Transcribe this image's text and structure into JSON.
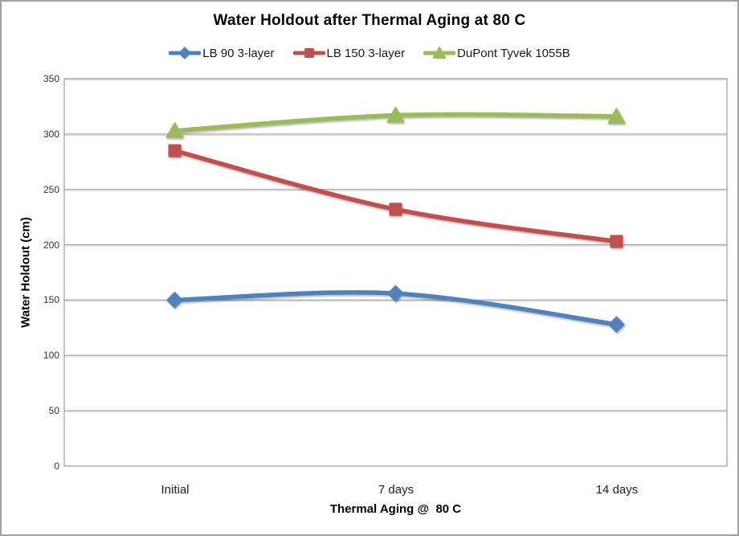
{
  "window": {
    "background": "#FFFFFF",
    "border_color": "#A2A2A2"
  },
  "chart_data": {
    "type": "line",
    "title": "Water Holdout after Thermal Aging at 80 C",
    "xlabel": "Thermal Aging @  80 C",
    "ylabel": "Water Holdout (cm)",
    "categories": [
      "Initial",
      "7 days",
      "14 days"
    ],
    "yticks": [
      350,
      300,
      250,
      200,
      150,
      100,
      50,
      0
    ],
    "ylim": [
      0,
      350
    ],
    "ytick_step": 50,
    "grid": "horizontal",
    "gridline_color": "#A6A6A6",
    "legend_position": "top",
    "smoothed_lines": true,
    "series": [
      {
        "name": "LB 90 3-layer",
        "color": "#4F81BD",
        "marker": "diamond",
        "values": [
          150,
          156,
          128
        ]
      },
      {
        "name": "LB 150 3-layer",
        "color": "#C0504D",
        "marker": "square",
        "values": [
          285,
          232,
          203
        ]
      },
      {
        "name": "DuPont Tyvek 1055B",
        "color": "#9BBB59",
        "marker": "triangle",
        "values": [
          303,
          317,
          316
        ]
      }
    ]
  }
}
